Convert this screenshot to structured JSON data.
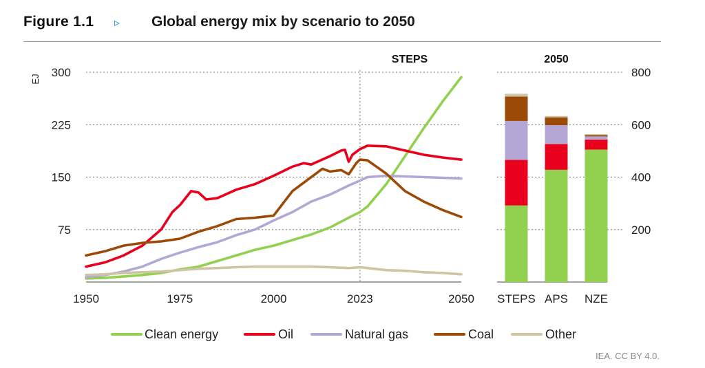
{
  "header": {
    "figure_label": "Figure 1.1",
    "arrow": "▹",
    "title": "Global energy mix by scenario to 2050"
  },
  "credit": "IEA. CC BY 4.0.",
  "colors": {
    "clean": "#92d050",
    "oil": "#e8001c",
    "gas": "#b4a7d6",
    "coal": "#9c4a08",
    "other": "#cfc4a4",
    "grid": "#8c8c8c"
  },
  "chart_data": [
    {
      "type": "line",
      "title": "STEPS",
      "ylabel": "EJ",
      "ylim": [
        0,
        300
      ],
      "yticks": [
        75,
        150,
        225,
        300
      ],
      "xlim": [
        1950,
        2050
      ],
      "xticks": [
        1950,
        1975,
        2000,
        2023,
        2050
      ],
      "marker_x": 2023,
      "grid": true,
      "series": [
        {
          "name": "Clean energy",
          "color": "clean",
          "points": [
            [
              1950,
              5
            ],
            [
              1955,
              6
            ],
            [
              1960,
              8
            ],
            [
              1965,
              10
            ],
            [
              1970,
              13
            ],
            [
              1975,
              18
            ],
            [
              1980,
              22
            ],
            [
              1985,
              30
            ],
            [
              1990,
              38
            ],
            [
              1995,
              46
            ],
            [
              2000,
              52
            ],
            [
              2005,
              60
            ],
            [
              2010,
              68
            ],
            [
              2015,
              78
            ],
            [
              2020,
              92
            ],
            [
              2023,
              100
            ],
            [
              2025,
              108
            ],
            [
              2030,
              140
            ],
            [
              2035,
              180
            ],
            [
              2040,
              220
            ],
            [
              2045,
              258
            ],
            [
              2050,
              293
            ]
          ]
        },
        {
          "name": "Oil",
          "color": "oil",
          "points": [
            [
              1950,
              22
            ],
            [
              1955,
              28
            ],
            [
              1960,
              38
            ],
            [
              1965,
              52
            ],
            [
              1970,
              75
            ],
            [
              1973,
              100
            ],
            [
              1975,
              110
            ],
            [
              1978,
              130
            ],
            [
              1980,
              128
            ],
            [
              1982,
              118
            ],
            [
              1985,
              120
            ],
            [
              1990,
              132
            ],
            [
              1995,
              140
            ],
            [
              2000,
              152
            ],
            [
              2005,
              165
            ],
            [
              2008,
              170
            ],
            [
              2010,
              168
            ],
            [
              2015,
              180
            ],
            [
              2018,
              188
            ],
            [
              2019,
              189
            ],
            [
              2020,
              172
            ],
            [
              2021,
              182
            ],
            [
              2023,
              190
            ],
            [
              2025,
              195
            ],
            [
              2030,
              194
            ],
            [
              2035,
              188
            ],
            [
              2040,
              182
            ],
            [
              2045,
              178
            ],
            [
              2050,
              175
            ]
          ]
        },
        {
          "name": "Natural gas",
          "color": "gas",
          "points": [
            [
              1950,
              7
            ],
            [
              1955,
              10
            ],
            [
              1960,
              15
            ],
            [
              1965,
              22
            ],
            [
              1970,
              33
            ],
            [
              1975,
              42
            ],
            [
              1980,
              50
            ],
            [
              1985,
              57
            ],
            [
              1990,
              67
            ],
            [
              1995,
              75
            ],
            [
              2000,
              88
            ],
            [
              2005,
              100
            ],
            [
              2010,
              115
            ],
            [
              2015,
              125
            ],
            [
              2020,
              138
            ],
            [
              2023,
              145
            ],
            [
              2025,
              150
            ],
            [
              2030,
              152
            ],
            [
              2035,
              151
            ],
            [
              2040,
              150
            ],
            [
              2045,
              149
            ],
            [
              2050,
              148
            ]
          ]
        },
        {
          "name": "Coal",
          "color": "coal",
          "points": [
            [
              1950,
              38
            ],
            [
              1955,
              44
            ],
            [
              1960,
              52
            ],
            [
              1965,
              56
            ],
            [
              1970,
              58
            ],
            [
              1975,
              62
            ],
            [
              1980,
              72
            ],
            [
              1985,
              80
            ],
            [
              1990,
              90
            ],
            [
              1995,
              92
            ],
            [
              2000,
              95
            ],
            [
              2005,
              130
            ],
            [
              2010,
              150
            ],
            [
              2013,
              162
            ],
            [
              2015,
              158
            ],
            [
              2018,
              160
            ],
            [
              2020,
              154
            ],
            [
              2022,
              170
            ],
            [
              2023,
              175
            ],
            [
              2025,
              174
            ],
            [
              2030,
              155
            ],
            [
              2035,
              130
            ],
            [
              2040,
              115
            ],
            [
              2045,
              103
            ],
            [
              2050,
              93
            ]
          ]
        },
        {
          "name": "Other",
          "color": "other",
          "points": [
            [
              1950,
              10
            ],
            [
              1955,
              11
            ],
            [
              1960,
              13
            ],
            [
              1965,
              14
            ],
            [
              1970,
              15
            ],
            [
              1975,
              17
            ],
            [
              1980,
              19
            ],
            [
              1985,
              20
            ],
            [
              1990,
              21
            ],
            [
              1995,
              22
            ],
            [
              2000,
              22
            ],
            [
              2005,
              22
            ],
            [
              2010,
              22
            ],
            [
              2015,
              21
            ],
            [
              2020,
              20
            ],
            [
              2023,
              21
            ],
            [
              2025,
              20
            ],
            [
              2030,
              17
            ],
            [
              2035,
              16
            ],
            [
              2040,
              14
            ],
            [
              2045,
              13
            ],
            [
              2050,
              11
            ]
          ]
        }
      ]
    },
    {
      "type": "bar",
      "stacked": true,
      "title": "2050",
      "ylim": [
        0,
        800
      ],
      "yticks": [
        200,
        400,
        600,
        800
      ],
      "categories": [
        "STEPS",
        "APS",
        "NZE"
      ],
      "series": [
        {
          "name": "Clean energy",
          "color": "clean",
          "values": [
            292,
            428,
            505
          ]
        },
        {
          "name": "Oil",
          "color": "oil",
          "values": [
            174,
            98,
            38
          ]
        },
        {
          "name": "Natural gas",
          "color": "gas",
          "values": [
            148,
            72,
            12
          ]
        },
        {
          "name": "Coal",
          "color": "coal",
          "values": [
            93,
            30,
            5
          ]
        },
        {
          "name": "Other",
          "color": "other",
          "values": [
            11,
            5,
            4
          ]
        }
      ]
    }
  ],
  "legend": [
    {
      "label": "Clean energy",
      "color": "clean"
    },
    {
      "label": "Oil",
      "color": "oil"
    },
    {
      "label": "Natural gas",
      "color": "gas"
    },
    {
      "label": "Coal",
      "color": "coal"
    },
    {
      "label": "Other",
      "color": "other"
    }
  ]
}
